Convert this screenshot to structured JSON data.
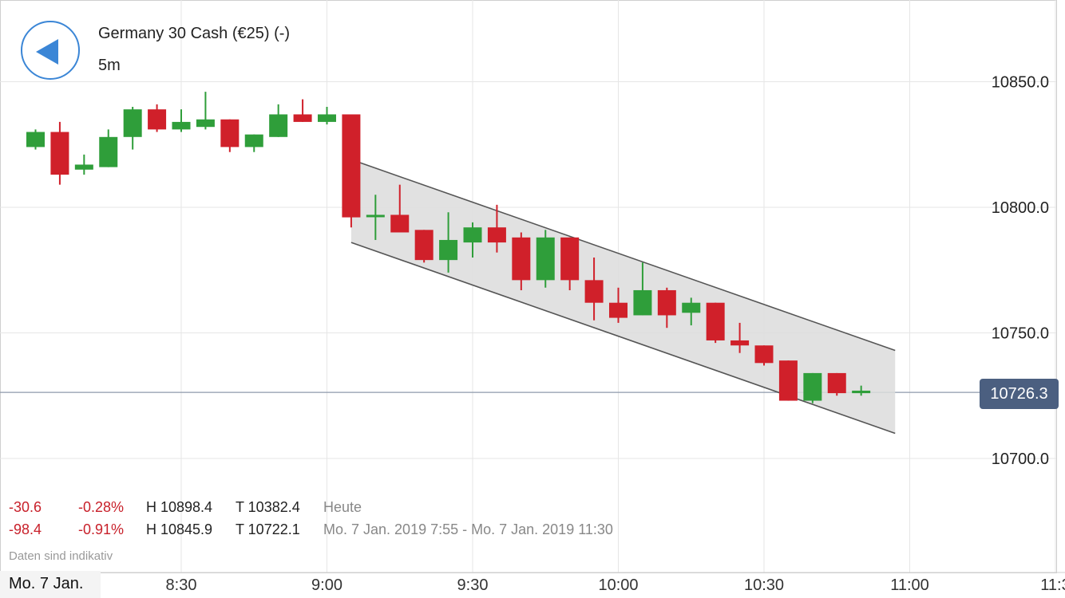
{
  "header": {
    "title": "Germany 30 Cash (€25) (-)",
    "interval": "5m",
    "back_icon": "back-arrow-icon",
    "accent_color": "#3b86d6"
  },
  "stats": {
    "today": {
      "change": "-30.6",
      "change_pct": "-0.28%",
      "high": "H 10898.4",
      "low": "T 10382.4",
      "label": "Heute"
    },
    "period": {
      "change": "-98.4",
      "change_pct": "-0.91%",
      "high": "H 10845.9",
      "low": "T 10722.1",
      "label": "Mo. 7 Jan. 2019 7:55 - Mo. 7 Jan. 2019 11:30"
    }
  },
  "disclaimer": "Daten sind indikativ",
  "date_label": "Mo. 7 Jan.",
  "current_price": "10726.3",
  "colors": {
    "up": "#2f9e3a",
    "down": "#d0202a",
    "badge": "#4b5f80",
    "channel_fill": "#dcdcdc"
  },
  "chart_data": {
    "type": "candlestick",
    "y_axis_position": "right",
    "yticks": [
      "10850.0",
      "10800.0",
      "10750.0",
      "10700.0"
    ],
    "ytick_values": [
      10850,
      10800,
      10750,
      10700
    ],
    "xticks": [
      "8:30",
      "9:00",
      "9:30",
      "10:00",
      "10:30",
      "11:00",
      "11:3"
    ],
    "xtick_minutes": [
      510,
      540,
      570,
      600,
      630,
      660,
      690
    ],
    "grid": true,
    "current_price": 10726.3,
    "candles": [
      {
        "t": 480,
        "o": 10824.0,
        "h": 10831.0,
        "l": 10823.0,
        "c": 10830.0
      },
      {
        "t": 485,
        "o": 10830.0,
        "h": 10834.0,
        "l": 10809.0,
        "c": 10813.0
      },
      {
        "t": 490,
        "o": 10815.0,
        "h": 10821.0,
        "l": 10813.0,
        "c": 10817.0
      },
      {
        "t": 495,
        "o": 10816.0,
        "h": 10831.0,
        "l": 10816.0,
        "c": 10828.0
      },
      {
        "t": 500,
        "o": 10828.0,
        "h": 10840.0,
        "l": 10823.0,
        "c": 10839.0
      },
      {
        "t": 505,
        "o": 10839.0,
        "h": 10841.0,
        "l": 10830.0,
        "c": 10831.0
      },
      {
        "t": 510,
        "o": 10831.0,
        "h": 10839.0,
        "l": 10830.0,
        "c": 10834.0
      },
      {
        "t": 515,
        "o": 10832.0,
        "h": 10846.0,
        "l": 10831.0,
        "c": 10835.0
      },
      {
        "t": 520,
        "o": 10835.0,
        "h": 10835.0,
        "l": 10822.0,
        "c": 10824.0
      },
      {
        "t": 525,
        "o": 10824.0,
        "h": 10829.0,
        "l": 10822.0,
        "c": 10829.0
      },
      {
        "t": 530,
        "o": 10828.0,
        "h": 10841.0,
        "l": 10828.0,
        "c": 10837.0
      },
      {
        "t": 535,
        "o": 10837.0,
        "h": 10843.0,
        "l": 10834.0,
        "c": 10834.0
      },
      {
        "t": 540,
        "o": 10834.0,
        "h": 10840.0,
        "l": 10833.0,
        "c": 10837.0
      },
      {
        "t": 545,
        "o": 10837.0,
        "h": 10837.0,
        "l": 10792.0,
        "c": 10796.0
      },
      {
        "t": 550,
        "o": 10797.0,
        "h": 10805.0,
        "l": 10787.0,
        "c": 10797.0
      },
      {
        "t": 555,
        "o": 10797.0,
        "h": 10809.0,
        "l": 10790.0,
        "c": 10790.0
      },
      {
        "t": 560,
        "o": 10791.0,
        "h": 10791.0,
        "l": 10778.0,
        "c": 10779.0
      },
      {
        "t": 565,
        "o": 10779.0,
        "h": 10798.0,
        "l": 10774.0,
        "c": 10787.0
      },
      {
        "t": 570,
        "o": 10786.0,
        "h": 10794.0,
        "l": 10780.0,
        "c": 10792.0
      },
      {
        "t": 575,
        "o": 10792.0,
        "h": 10801.0,
        "l": 10782.0,
        "c": 10786.0
      },
      {
        "t": 580,
        "o": 10788.0,
        "h": 10790.0,
        "l": 10767.0,
        "c": 10771.0
      },
      {
        "t": 585,
        "o": 10771.0,
        "h": 10791.0,
        "l": 10768.0,
        "c": 10788.0
      },
      {
        "t": 590,
        "o": 10788.0,
        "h": 10788.0,
        "l": 10767.0,
        "c": 10771.0
      },
      {
        "t": 595,
        "o": 10771.0,
        "h": 10780.0,
        "l": 10755.0,
        "c": 10762.0
      },
      {
        "t": 600,
        "o": 10762.0,
        "h": 10768.0,
        "l": 10754.0,
        "c": 10756.0
      },
      {
        "t": 605,
        "o": 10757.0,
        "h": 10778.0,
        "l": 10757.0,
        "c": 10767.0
      },
      {
        "t": 610,
        "o": 10767.0,
        "h": 10768.0,
        "l": 10752.0,
        "c": 10757.0
      },
      {
        "t": 615,
        "o": 10758.0,
        "h": 10764.0,
        "l": 10753.0,
        "c": 10762.0
      },
      {
        "t": 620,
        "o": 10762.0,
        "h": 10762.0,
        "l": 10746.0,
        "c": 10747.0
      },
      {
        "t": 625,
        "o": 10747.0,
        "h": 10754.0,
        "l": 10742.0,
        "c": 10745.0
      },
      {
        "t": 630,
        "o": 10745.0,
        "h": 10745.0,
        "l": 10737.0,
        "c": 10738.0
      },
      {
        "t": 635,
        "o": 10739.0,
        "h": 10739.0,
        "l": 10723.0,
        "c": 10723.0
      },
      {
        "t": 640,
        "o": 10723.0,
        "h": 10734.0,
        "l": 10722.0,
        "c": 10734.0
      },
      {
        "t": 645,
        "o": 10734.0,
        "h": 10734.0,
        "l": 10725.0,
        "c": 10726.0
      },
      {
        "t": 650,
        "o": 10726.0,
        "h": 10729.0,
        "l": 10725.0,
        "c": 10727.0
      }
    ],
    "channel": {
      "upper": [
        [
          545,
          10819.0
        ],
        [
          657,
          10743.0
        ]
      ],
      "lower": [
        [
          545,
          10786.0
        ],
        [
          657,
          10710.0
        ]
      ]
    }
  }
}
